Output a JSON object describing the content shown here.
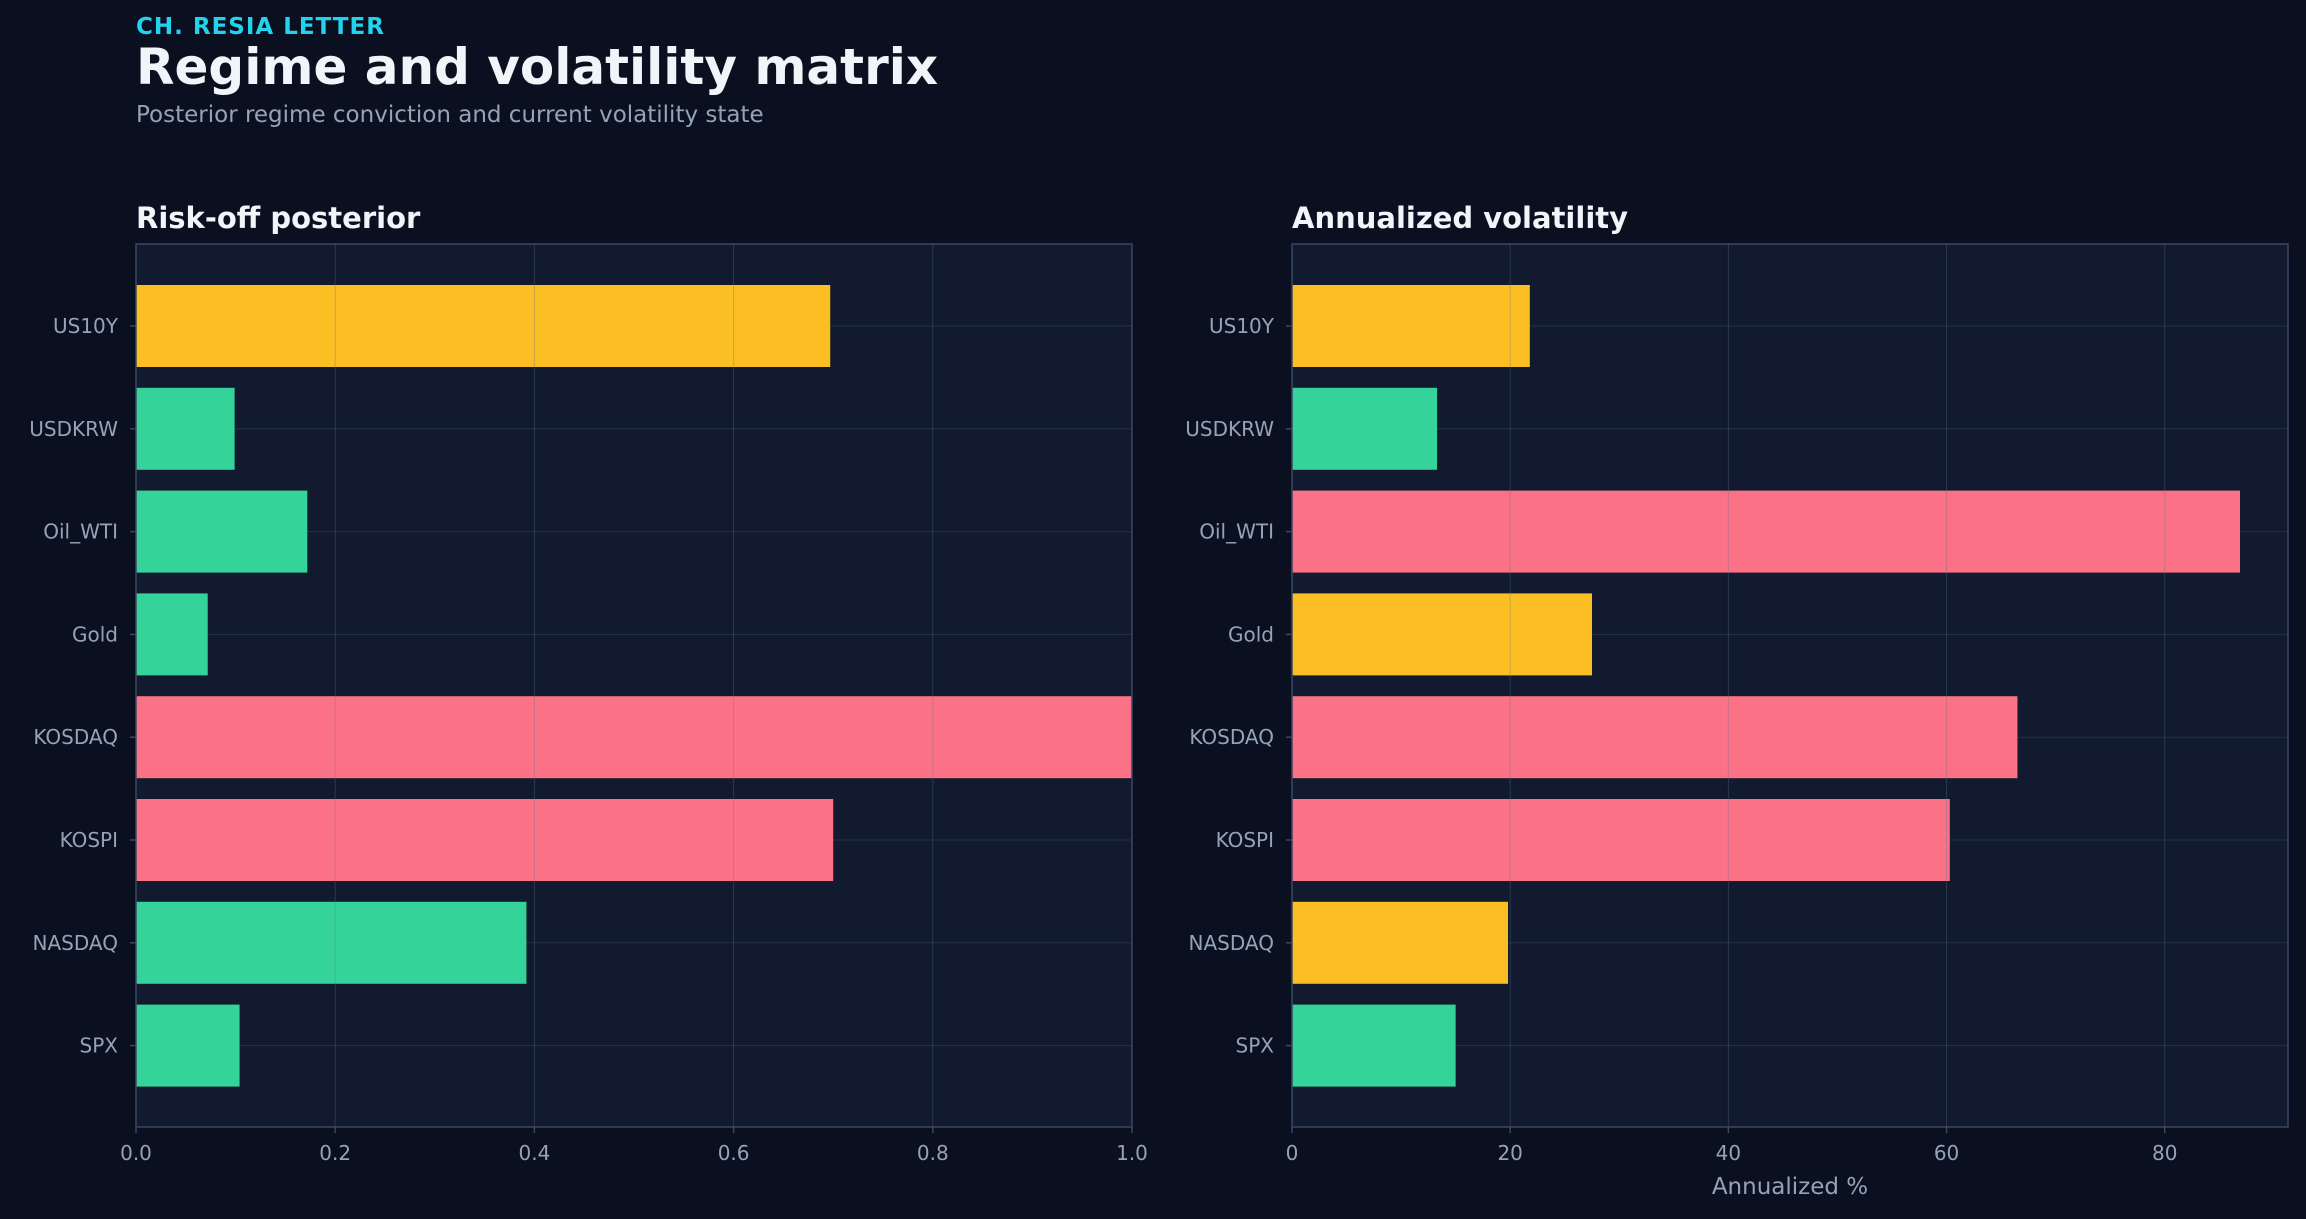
{
  "header": {
    "kicker": "CH. RESIA LETTER",
    "title": "Regime and volatility matrix",
    "subtitle": "Posterior regime conviction and current volatility state"
  },
  "colors": {
    "background": "#0b1020",
    "panel": "#111a2e",
    "grid": "#243149",
    "frame": "#3b4663",
    "tick_text": "#94a3b8",
    "title_text": "#f1f5f9",
    "kicker": "#22d3ee",
    "amber": "#fbbf24",
    "green": "#34d399",
    "red": "#fb7185"
  },
  "chart_data": [
    {
      "type": "bar",
      "orientation": "horizontal",
      "title": "Risk-off posterior",
      "xlabel": "",
      "categories": [
        "US10Y",
        "USDKRW",
        "Oil_WTI",
        "Gold",
        "KOSDAQ",
        "KOSPI",
        "NASDAQ",
        "SPX"
      ],
      "values": [
        0.697,
        0.099,
        0.172,
        0.072,
        1.0,
        0.7,
        0.392,
        0.104
      ],
      "bar_colors": [
        "amber",
        "green",
        "green",
        "green",
        "red",
        "red",
        "green",
        "green"
      ],
      "xlim": [
        0,
        1.0
      ],
      "xticks": [
        0,
        0.2,
        0.4,
        0.6,
        0.8,
        1.0
      ],
      "xtick_labels": [
        "0.0",
        "0.2",
        "0.4",
        "0.6",
        "0.8",
        "1.0"
      ],
      "grid": true
    },
    {
      "type": "bar",
      "orientation": "horizontal",
      "title": "Annualized volatility",
      "xlabel": "Annualized %",
      "categories": [
        "US10Y",
        "USDKRW",
        "Oil_WTI",
        "Gold",
        "KOSDAQ",
        "KOSPI",
        "NASDAQ",
        "SPX"
      ],
      "values": [
        21.8,
        13.3,
        86.9,
        27.5,
        66.5,
        60.3,
        19.8,
        15.0
      ],
      "bar_colors": [
        "amber",
        "green",
        "red",
        "amber",
        "red",
        "red",
        "amber",
        "green"
      ],
      "xlim": [
        0,
        91.3
      ],
      "xticks": [
        0,
        20,
        40,
        60,
        80
      ],
      "xtick_labels": [
        "0",
        "20",
        "40",
        "60",
        "80"
      ],
      "grid": true
    }
  ]
}
